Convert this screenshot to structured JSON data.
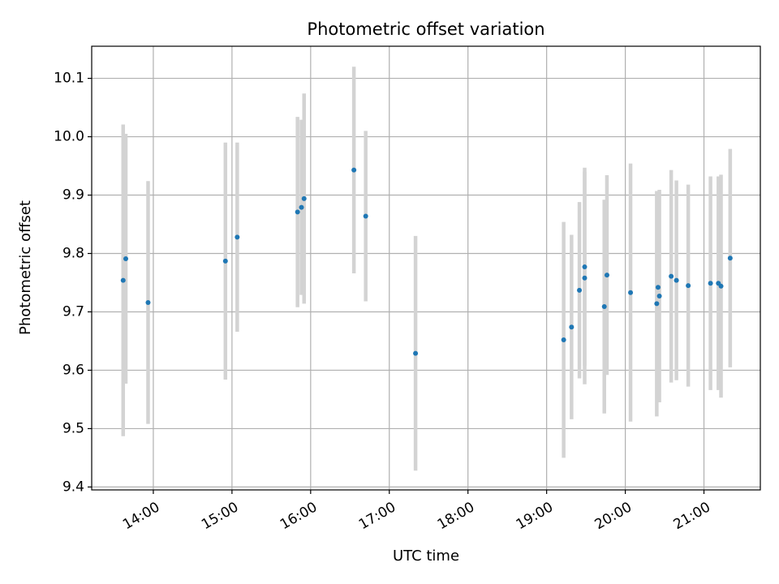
{
  "chart_data": {
    "type": "scatter",
    "title": "Photometric offset variation",
    "xlabel": "UTC time",
    "ylabel": "Photometric offset",
    "x_unit": "UTC time HH:MM",
    "xlim": [
      "13:13",
      "21:43"
    ],
    "ylim": [
      9.395,
      10.155
    ],
    "x_ticks": [
      "14:00",
      "15:00",
      "16:00",
      "17:00",
      "18:00",
      "19:00",
      "20:00",
      "21:00"
    ],
    "y_ticks": [
      "9.4",
      "9.5",
      "9.6",
      "9.7",
      "9.8",
      "9.9",
      "10.0",
      "10.1"
    ],
    "grid": true,
    "errorbar_color": "#d3d3d3",
    "marker_color": "#1f77b4",
    "series": [
      {
        "points": [
          {
            "x": "13:37",
            "y": 9.754,
            "err": 0.267
          },
          {
            "x": "13:39",
            "y": 9.791,
            "err": 0.214
          },
          {
            "x": "13:56",
            "y": 9.716,
            "err": 0.208
          },
          {
            "x": "14:55",
            "y": 9.787,
            "err": 0.203
          },
          {
            "x": "15:04",
            "y": 9.828,
            "err": 0.162
          },
          {
            "x": "15:50",
            "y": 9.871,
            "err": 0.163
          },
          {
            "x": "15:53",
            "y": 9.879,
            "err": 0.15
          },
          {
            "x": "15:55",
            "y": 9.894,
            "err": 0.18
          },
          {
            "x": "16:33",
            "y": 9.943,
            "err": 0.177
          },
          {
            "x": "16:42",
            "y": 9.864,
            "err": 0.146
          },
          {
            "x": "17:20",
            "y": 9.629,
            "err": 0.201
          },
          {
            "x": "19:13",
            "y": 9.652,
            "err": 0.202
          },
          {
            "x": "19:19",
            "y": 9.674,
            "err": 0.158
          },
          {
            "x": "19:25",
            "y": 9.737,
            "err": 0.151
          },
          {
            "x": "19:29",
            "y": 9.777,
            "err": 0.17
          },
          {
            "x": "19:29",
            "y": 9.758,
            "err": 0.182
          },
          {
            "x": "19:44",
            "y": 9.709,
            "err": 0.183
          },
          {
            "x": "19:46",
            "y": 9.763,
            "err": 0.171
          },
          {
            "x": "20:04",
            "y": 9.733,
            "err": 0.221
          },
          {
            "x": "20:24",
            "y": 9.714,
            "err": 0.193
          },
          {
            "x": "20:25",
            "y": 9.742,
            "err": 0.164
          },
          {
            "x": "20:26",
            "y": 9.727,
            "err": 0.182
          },
          {
            "x": "20:35",
            "y": 9.761,
            "err": 0.182
          },
          {
            "x": "20:39",
            "y": 9.754,
            "err": 0.171
          },
          {
            "x": "20:48",
            "y": 9.745,
            "err": 0.173
          },
          {
            "x": "21:05",
            "y": 9.749,
            "err": 0.183
          },
          {
            "x": "21:11",
            "y": 9.749,
            "err": 0.183
          },
          {
            "x": "21:13",
            "y": 9.744,
            "err": 0.191
          },
          {
            "x": "21:20",
            "y": 9.792,
            "err": 0.187
          }
        ]
      }
    ]
  }
}
